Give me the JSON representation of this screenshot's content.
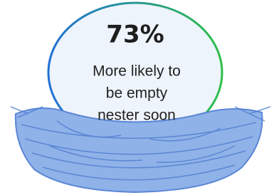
{
  "stat": {
    "value": "73%",
    "label_lines": [
      "More likely to",
      "be empty",
      "nester soon"
    ]
  }
}
